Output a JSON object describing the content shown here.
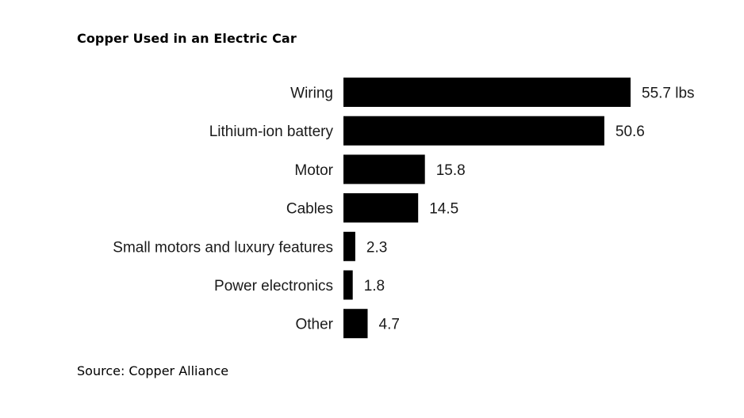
{
  "header": {
    "title": "Copper Used in an Electric Car"
  },
  "footer": {
    "source": "Source: Copper Alliance"
  },
  "colors": {
    "bar": "#000000",
    "background": "#ffffff",
    "text": "#1a1a1a"
  },
  "chart_data": {
    "type": "bar",
    "orientation": "horizontal",
    "title": "Copper Used in an Electric Car",
    "xlabel": "",
    "ylabel": "",
    "unit": "lbs",
    "grid": false,
    "legend": "none",
    "categories": [
      "Wiring",
      "Lithium-ion battery",
      "Motor",
      "Cables",
      "Small motors and luxury features",
      "Power electronics",
      "Other"
    ],
    "values": [
      55.7,
      50.6,
      15.8,
      14.5,
      2.3,
      1.8,
      4.7
    ],
    "value_labels": [
      "55.7 lbs",
      "50.6",
      "15.8",
      "14.5",
      "2.3",
      "1.8",
      "4.7"
    ],
    "xlim": [
      0,
      55.7
    ]
  }
}
